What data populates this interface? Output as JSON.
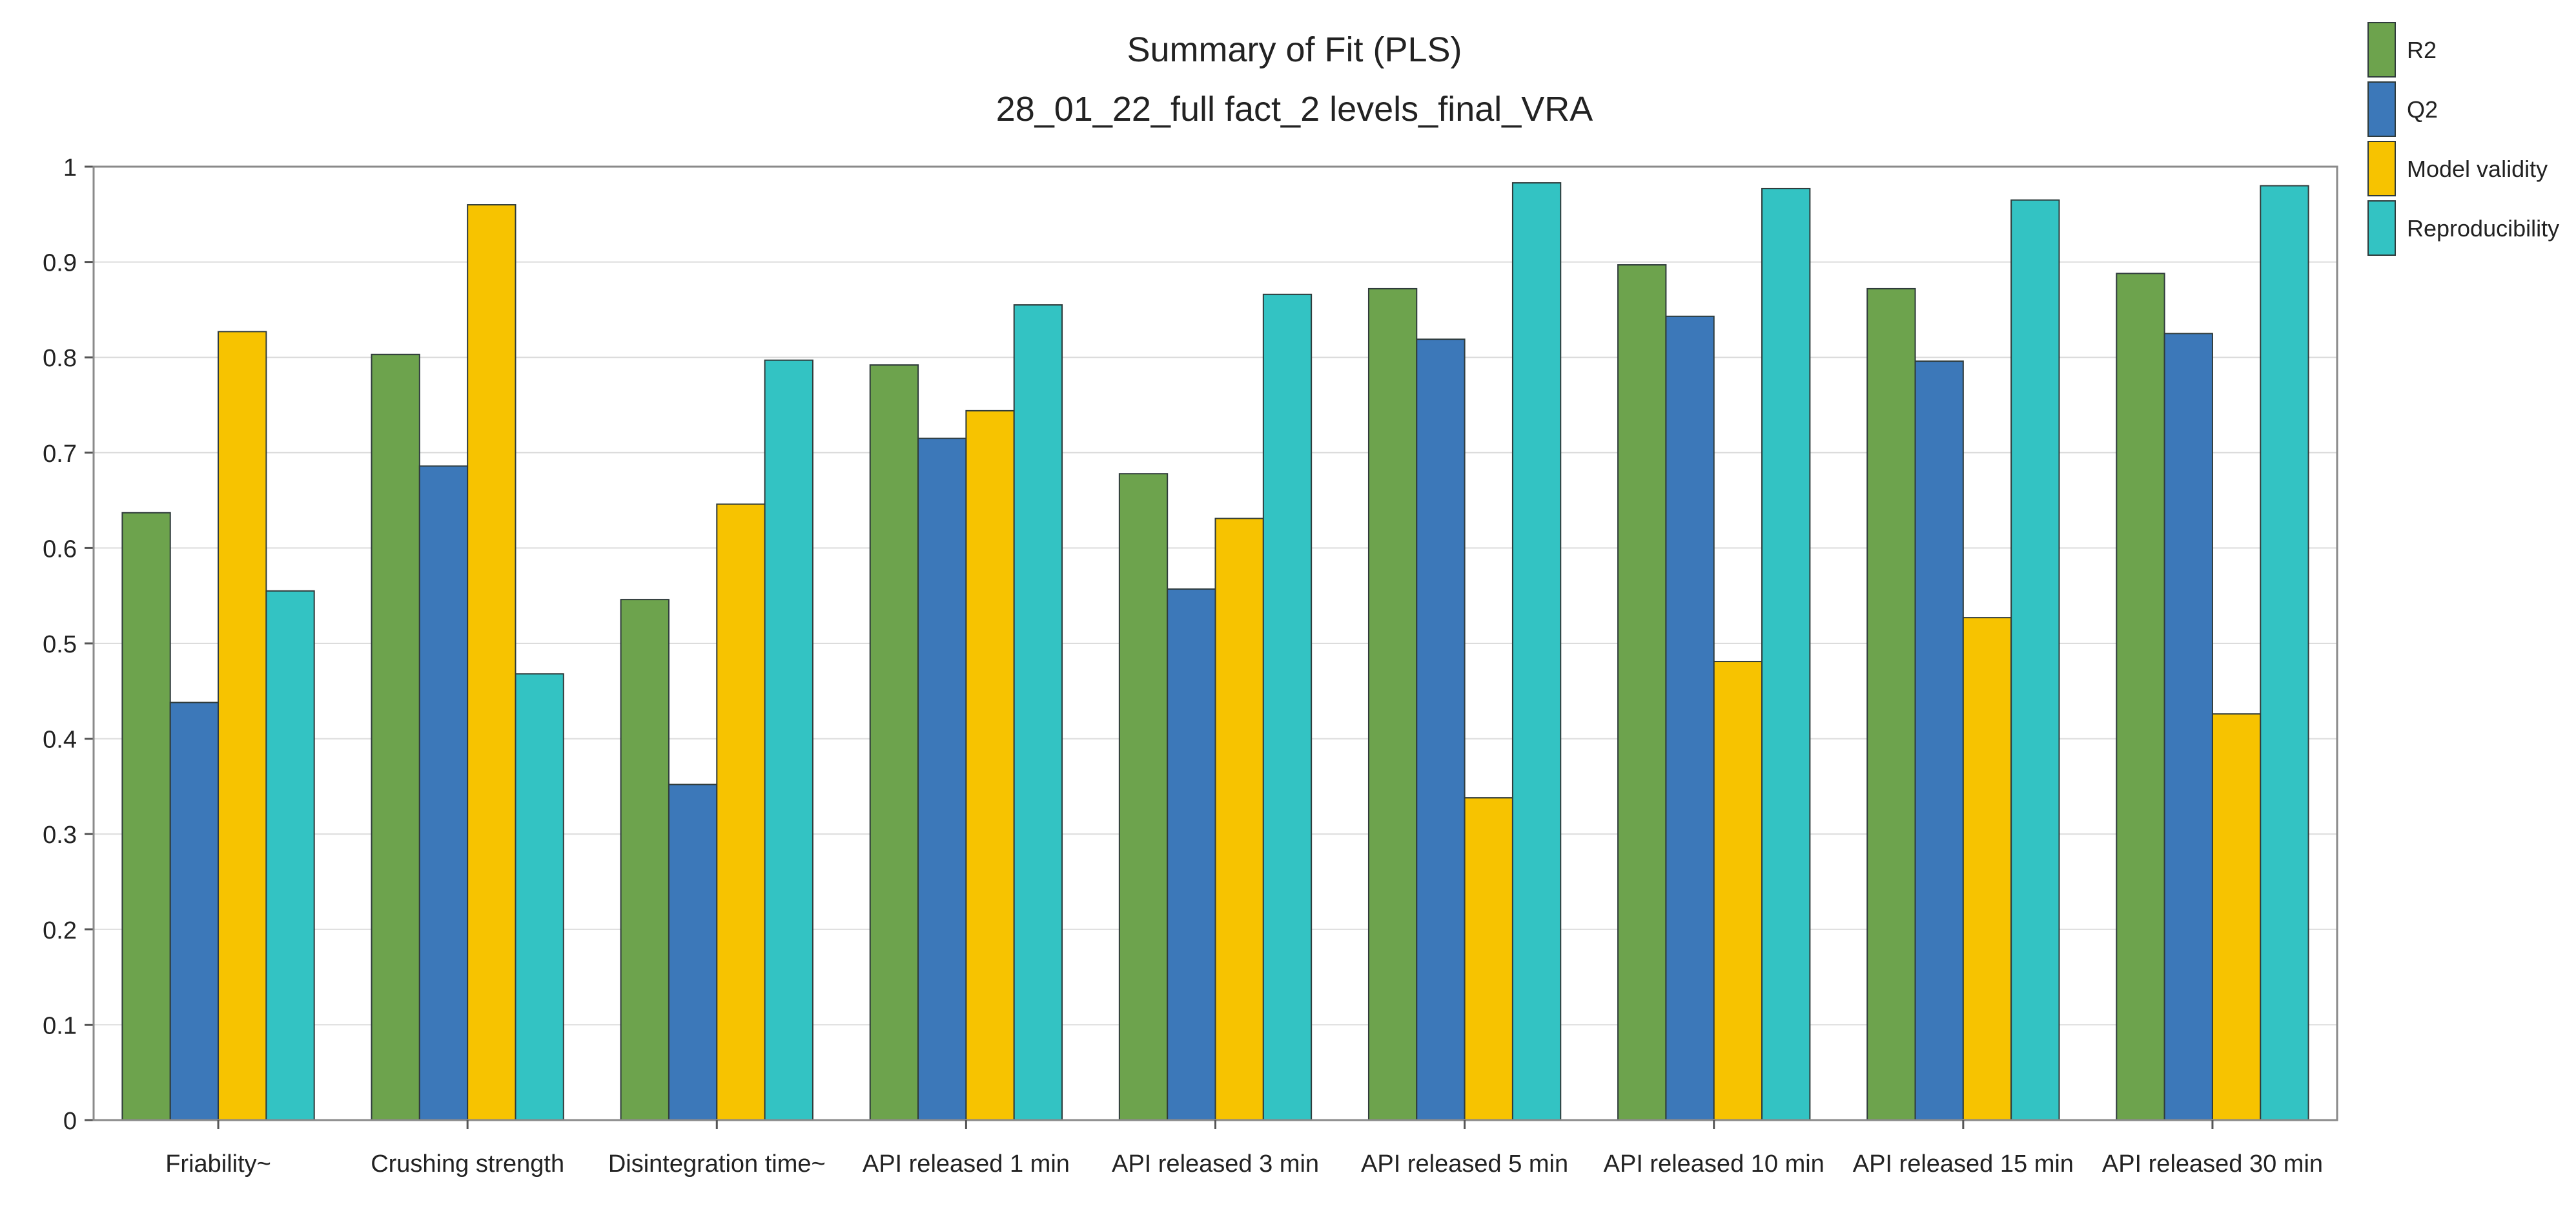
{
  "chart_data": {
    "type": "bar",
    "title": "Summary of Fit (PLS)",
    "subtitle": "28_01_22_full fact_2 levels_final_VRA",
    "xlabel": "",
    "ylabel": "",
    "ylim": [
      0,
      1
    ],
    "yticks": [
      "0",
      "0.1",
      "0.2",
      "0.3",
      "0.4",
      "0.5",
      "0.6",
      "0.7",
      "0.8",
      "0.9",
      "1"
    ],
    "grid": true,
    "legend_position": "top-right",
    "categories": [
      "Friability~",
      "Crushing strength",
      "Disintegration time~",
      "API released 1 min",
      "API released 3 min",
      "API released 5 min",
      "API released 10 min",
      "API released 15 min",
      "API released 30 min"
    ],
    "series": [
      {
        "name": "R2",
        "color": "#6da34d",
        "values": [
          0.637,
          0.803,
          0.546,
          0.792,
          0.678,
          0.872,
          0.897,
          0.872,
          0.888
        ]
      },
      {
        "name": "Q2",
        "color": "#3c78b9",
        "values": [
          0.438,
          0.686,
          0.352,
          0.715,
          0.557,
          0.819,
          0.843,
          0.796,
          0.825
        ]
      },
      {
        "name": "Model validity",
        "color": "#f7c300",
        "values": [
          0.827,
          0.96,
          0.646,
          0.744,
          0.631,
          0.338,
          0.481,
          0.527,
          0.426
        ]
      },
      {
        "name": "Reproducibility",
        "color": "#33c3c3",
        "values": [
          0.555,
          0.468,
          0.797,
          0.855,
          0.866,
          0.983,
          0.977,
          0.965,
          0.98
        ]
      }
    ]
  }
}
